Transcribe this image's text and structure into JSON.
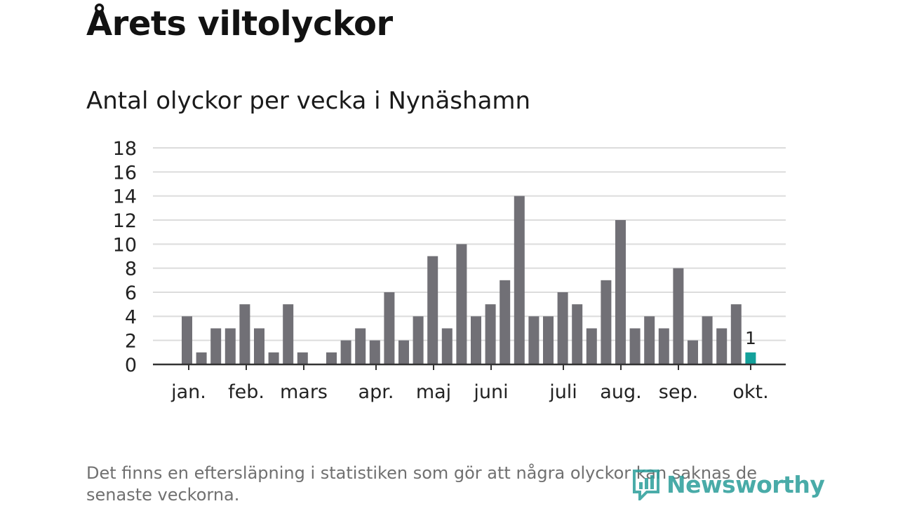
{
  "title": "Årets viltolyckor",
  "subtitle": "Antal olyckor per vecka i Nynäshamn",
  "footnote": "Det finns en eftersläpning i statistiken som gör att några olyckor kan saknas de senaste veckorna.",
  "brand": {
    "name": "Newsworthy",
    "logo_icon": "newsworthy-logo-icon"
  },
  "colors": {
    "bar": "#717076",
    "highlight": "#13a19b",
    "grid": "#dcdcdc",
    "axis": "#333333"
  },
  "chart_data": {
    "type": "bar",
    "xlabel": "",
    "ylabel": "",
    "ylim": [
      0,
      18
    ],
    "yticks": [
      0,
      2,
      4,
      6,
      8,
      10,
      12,
      14,
      16,
      18
    ],
    "grid": true,
    "month_labels": [
      "jan.",
      "feb.",
      "mars",
      "apr.",
      "maj",
      "juni",
      "juli",
      "aug.",
      "sep.",
      "okt."
    ],
    "values": [
      4,
      1,
      3,
      3,
      5,
      3,
      1,
      5,
      1,
      0,
      1,
      2,
      3,
      2,
      6,
      2,
      4,
      9,
      3,
      10,
      4,
      5,
      7,
      14,
      4,
      4,
      6,
      5,
      3,
      7,
      12,
      3,
      4,
      3,
      8,
      2,
      4,
      3,
      5,
      1
    ],
    "highlight_index": 39,
    "highlight_label": "1"
  }
}
